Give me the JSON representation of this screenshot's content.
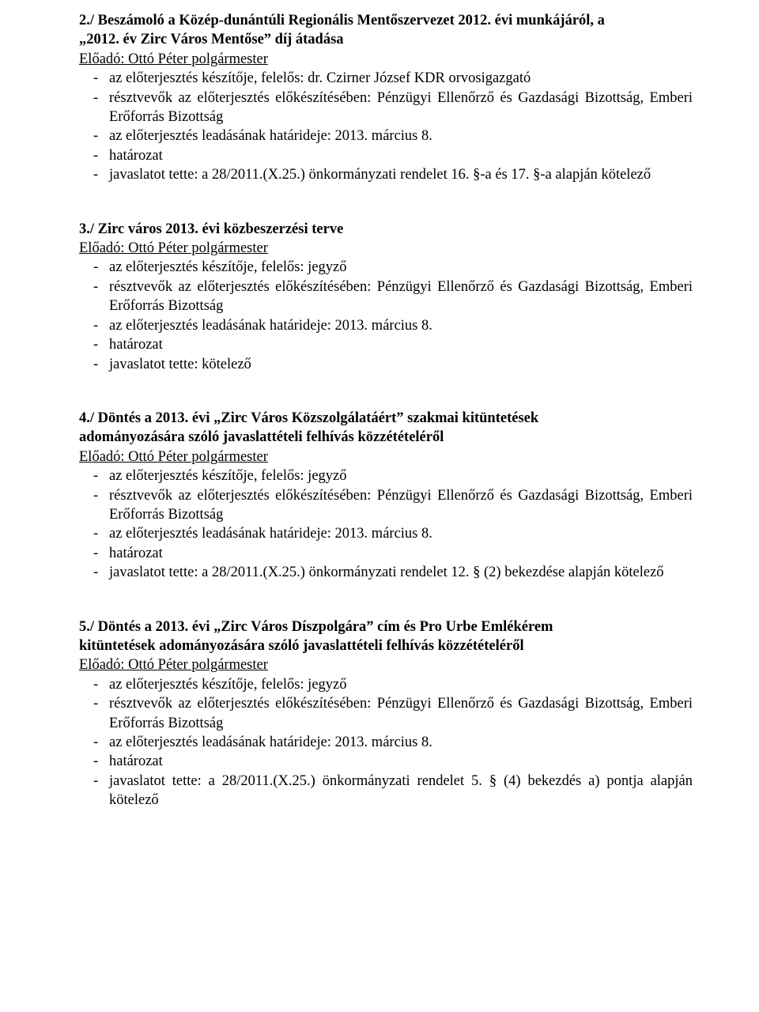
{
  "colors": {
    "text": "#000000",
    "background": "#ffffff"
  },
  "fontsize_body_pt": 14,
  "blocks": [
    {
      "heading_prefix": "2./",
      "heading_line1": "Beszámoló a Közép-dunántúli Regionális Mentőszervezet 2012. évi munkájáról, a",
      "heading_line2": "„2012. év Zirc Város Mentőse” díj átadása",
      "presenter": "Előadó: Ottó Péter polgármester",
      "items": [
        "az előterjesztés készítője, felelős: dr. Czirner József KDR orvosigazgató",
        "résztvevők az előterjesztés előkészítésében: Pénzügyi Ellenőrző és Gazdasági Bizottság, Emberi Erőforrás Bizottság",
        "az előterjesztés leadásának határideje: 2013. március 8.",
        "határozat",
        "javaslatot tette: a 28/2011.(X.25.) önkormányzati rendelet 16. §-a és 17. §-a alapján kötelező"
      ]
    },
    {
      "heading_prefix": "3./",
      "heading_line1": "Zirc város 2013. évi közbeszerzési terve",
      "heading_line2": "",
      "presenter": "Előadó: Ottó Péter polgármester",
      "items": [
        "az előterjesztés készítője, felelős: jegyző",
        "résztvevők az előterjesztés előkészítésében: Pénzügyi Ellenőrző és Gazdasági Bizottság, Emberi Erőforrás Bizottság",
        "az előterjesztés leadásának határideje: 2013. március 8.",
        "határozat",
        "javaslatot tette: kötelező"
      ]
    },
    {
      "heading_prefix": "4./",
      "heading_line1": "Döntés a 2013. évi „Zirc Város Közszolgálatáért” szakmai kitüntetések",
      "heading_line2": "adományozására szóló javaslattételi felhívás közzétételéről",
      "presenter": "Előadó: Ottó Péter polgármester",
      "items": [
        "az előterjesztés készítője, felelős: jegyző",
        "résztvevők az előterjesztés előkészítésében: Pénzügyi Ellenőrző és Gazdasági Bizottság, Emberi Erőforrás Bizottság",
        "az előterjesztés leadásának határideje: 2013. március 8.",
        "határozat",
        "javaslatot tette: a 28/2011.(X.25.) önkormányzati rendelet 12. § (2) bekezdése alapján kötelező"
      ]
    },
    {
      "heading_prefix": "5./",
      "heading_line1": "Döntés a 2013. évi „Zirc Város Díszpolgára” cím és Pro Urbe Emlékérem",
      "heading_line2": "kitüntetések adományozására szóló javaslattételi felhívás közzétételéről",
      "presenter": "Előadó: Ottó Péter polgármester",
      "items": [
        "az előterjesztés készítője, felelős: jegyző",
        "résztvevők az előterjesztés előkészítésében: Pénzügyi Ellenőrző és Gazdasági Bizottság, Emberi Erőforrás Bizottság",
        "az előterjesztés leadásának határideje: 2013. március 8.",
        "határozat",
        "javaslatot tette: a 28/2011.(X.25.) önkormányzati rendelet 5. § (4) bekezdés a) pontja alapján kötelező"
      ]
    }
  ]
}
